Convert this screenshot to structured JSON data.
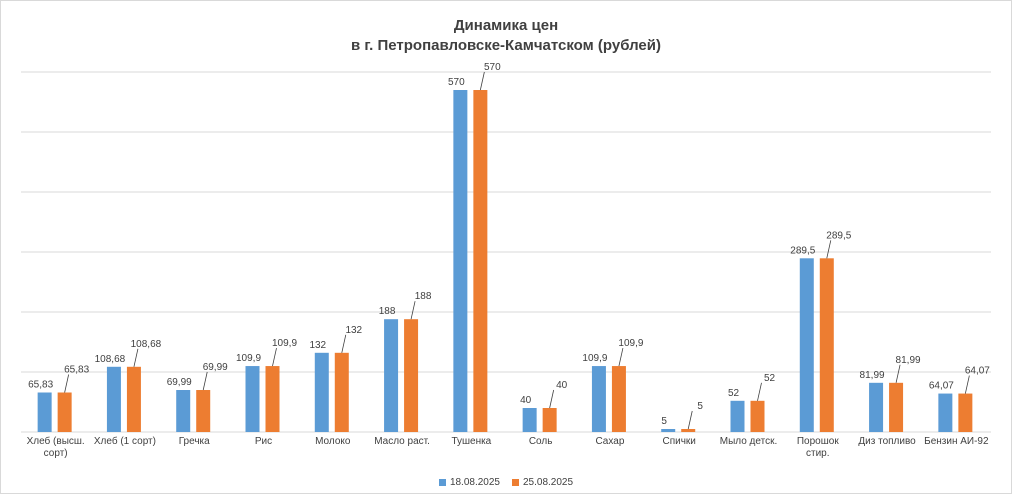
{
  "chart_data": {
    "type": "bar",
    "title": "Динамика цен",
    "subtitle": "в г. Петропавловске-Камчатском (рублей)",
    "categories": [
      [
        "Хлеб (высш.",
        "сорт)"
      ],
      [
        "Хлеб (1 сорт)"
      ],
      [
        "Гречка"
      ],
      [
        "Рис"
      ],
      [
        "Молоко"
      ],
      [
        "Масло раст."
      ],
      [
        "Тушенка"
      ],
      [
        "Соль"
      ],
      [
        "Сахар"
      ],
      [
        "Спички"
      ],
      [
        "Мыло детск."
      ],
      [
        "Порошок",
        "стир."
      ],
      [
        "Диз топливо"
      ],
      [
        "Бензин АИ-92"
      ]
    ],
    "series": [
      {
        "name": "18.08.2025",
        "color": "#5b9bd5",
        "values": [
          65.83,
          108.68,
          69.99,
          109.9,
          132,
          188,
          570,
          40,
          109.9,
          5,
          52,
          289.5,
          81.99,
          64.07
        ],
        "labels": [
          "65,83",
          "108,68",
          "69,99",
          "109,9",
          "132",
          "188",
          "570",
          "40",
          "109,9",
          "5",
          "52",
          "289,5",
          "81,99",
          "64,07"
        ]
      },
      {
        "name": "25.08.2025",
        "color": "#ed7d31",
        "values": [
          65.83,
          108.68,
          69.99,
          109.9,
          132,
          188,
          570,
          40,
          109.9,
          5,
          52,
          289.5,
          81.99,
          64.07
        ],
        "labels": [
          "65,83",
          "108,68",
          "69,99",
          "109,9",
          "132",
          "188",
          "570",
          "40",
          "109,9",
          "5",
          "52",
          "289,5",
          "81,99",
          "64,07"
        ]
      }
    ],
    "ylim": [
      0,
      600
    ],
    "grid": true,
    "legend": "bottom"
  }
}
